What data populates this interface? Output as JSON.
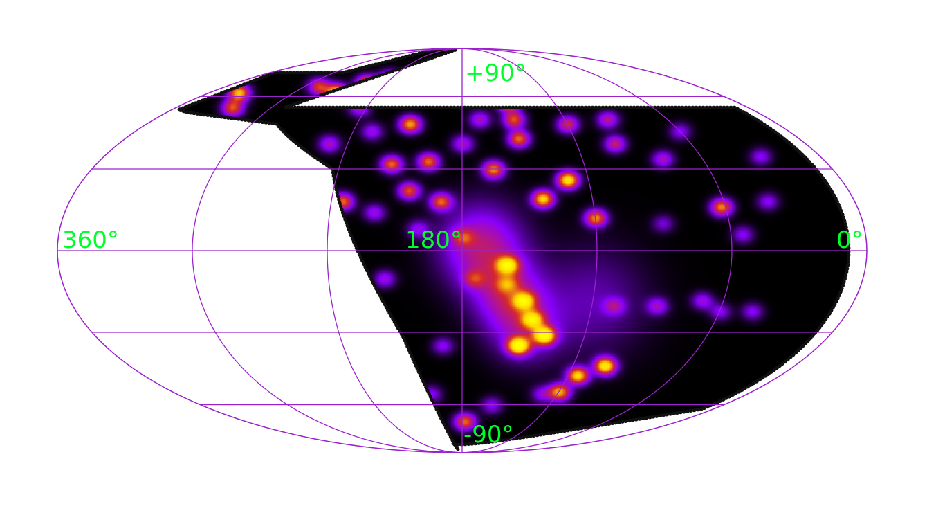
{
  "projection": "Mollweide (all-sky)",
  "colormap": [
    "#000000",
    "#8a00ff",
    "#d6282a",
    "#ffd400",
    "#ffff00"
  ],
  "grid_color": "#9b22cc",
  "label_color": "#00ff2a",
  "labels": {
    "north_pole": "+90°",
    "south_pole": "-90°",
    "left_edge": "360°",
    "center": "180°",
    "right_edge": "0°"
  },
  "sources": [
    {
      "lon": 175,
      "lat": 62,
      "level": 1.0
    },
    {
      "lon": 150,
      "lat": 58,
      "level": 1.0
    },
    {
      "lon": 200,
      "lat": 68,
      "level": 1.0
    },
    {
      "lon": 240,
      "lat": 68,
      "level": 1.0
    },
    {
      "lon": 255,
      "lat": 66,
      "level": 1.0
    },
    {
      "lon": 270,
      "lat": 62,
      "level": 1.0
    },
    {
      "lon": 305,
      "lat": 42,
      "level": 0.9
    },
    {
      "lon": 150,
      "lat": 42,
      "level": 0.7
    },
    {
      "lon": 130,
      "lat": 26,
      "level": 1.0
    },
    {
      "lon": 120,
      "lat": 12,
      "level": 0.75
    },
    {
      "lon": 62,
      "lat": 16,
      "level": 0.75
    },
    {
      "lon": 160,
      "lat": -5,
      "level": 0.75
    },
    {
      "lon": 152,
      "lat": -18,
      "level": 0.7
    },
    {
      "lon": 147,
      "lat": -25,
      "level": 0.7
    },
    {
      "lon": 140,
      "lat": -31,
      "level": 1.0
    },
    {
      "lon": 152,
      "lat": -35,
      "level": 1.0
    },
    {
      "lon": 103,
      "lat": -43,
      "level": 1.0
    },
    {
      "lon": 115,
      "lat": -47,
      "level": 0.9
    },
    {
      "lon": 120,
      "lat": -54,
      "level": 0.8
    },
    {
      "lon": 178,
      "lat": -68,
      "level": 0.7
    },
    {
      "lon": 197,
      "lat": 33,
      "level": 0.7
    },
    {
      "lon": 205,
      "lat": 22,
      "level": 0.65
    },
    {
      "lon": 215,
      "lat": 32,
      "level": 0.7
    },
    {
      "lon": 235,
      "lat": 18,
      "level": 0.7
    },
    {
      "lon": 190,
      "lat": 18,
      "level": 0.65
    },
    {
      "lon": 210,
      "lat": 48,
      "level": 0.8
    },
    {
      "lon": 165,
      "lat": 30,
      "level": 0.75
    },
    {
      "lon": 143,
      "lat": 19,
      "level": 0.9
    },
    {
      "lon": 150,
      "lat": 50,
      "level": 0.65
    },
    {
      "lon": 120,
      "lat": 48,
      "level": 0.55
    },
    {
      "lon": 100,
      "lat": 40,
      "level": 0.5
    },
    {
      "lon": 80,
      "lat": 34,
      "level": 0.4
    },
    {
      "lon": 95,
      "lat": 50,
      "level": 0.45
    },
    {
      "lon": 340,
      "lat": 62,
      "level": 0.85
    },
    {
      "lon": 325,
      "lat": 55,
      "level": 0.65
    },
    {
      "lon": 180,
      "lat": 5,
      "level": 0.35
    },
    {
      "lon": 175,
      "lat": -10,
      "level": 0.3
    },
    {
      "lon": 160,
      "lat": -12,
      "level": 0.35
    },
    {
      "lon": 215,
      "lat": -10,
      "level": 0.35
    },
    {
      "lon": 225,
      "lat": -22,
      "level": 0.35
    },
    {
      "lon": 190,
      "lat": -35,
      "level": 0.3
    },
    {
      "lon": 220,
      "lat": 14,
      "level": 0.35
    },
    {
      "lon": 200,
      "lat": 8,
      "level": 0.3
    },
    {
      "lon": 250,
      "lat": 40,
      "level": 0.4
    },
    {
      "lon": 245,
      "lat": 55,
      "level": 0.4
    },
    {
      "lon": 180,
      "lat": 40,
      "level": 0.4
    },
    {
      "lon": 170,
      "lat": 50,
      "level": 0.4
    },
    {
      "lon": 90,
      "lat": -20,
      "level": 0.35
    },
    {
      "lon": 70,
      "lat": -18,
      "level": 0.35
    },
    {
      "lon": 60,
      "lat": -22,
      "level": 0.3
    },
    {
      "lon": 45,
      "lat": -22,
      "level": 0.3
    },
    {
      "lon": 110,
      "lat": -20,
      "level": 0.3
    },
    {
      "lon": 55,
      "lat": 6,
      "level": 0.3
    },
    {
      "lon": 40,
      "lat": 18,
      "level": 0.3
    },
    {
      "lon": 90,
      "lat": 10,
      "level": 0.25
    },
    {
      "lon": 130,
      "lat": -55,
      "level": 0.3
    },
    {
      "lon": 160,
      "lat": -60,
      "level": 0.3
    },
    {
      "lon": 200,
      "lat": -55,
      "level": 0.3
    },
    {
      "lon": 60,
      "lat": 45,
      "level": 0.3
    },
    {
      "lon": 30,
      "lat": 35,
      "level": 0.3
    },
    {
      "lon": 290,
      "lat": 65,
      "level": 0.6
    },
    {
      "lon": 230,
      "lat": 45,
      "level": 0.35
    }
  ],
  "diffuse": [
    {
      "lon": 172,
      "lat": 2,
      "sigma": 14,
      "level": 0.45
    },
    {
      "lon": 160,
      "lat": -15,
      "sigma": 12,
      "level": 0.35
    },
    {
      "lon": 150,
      "lat": -28,
      "sigma": 12,
      "level": 0.3
    },
    {
      "lon": 120,
      "lat": -18,
      "sigma": 18,
      "level": 0.2
    }
  ]
}
